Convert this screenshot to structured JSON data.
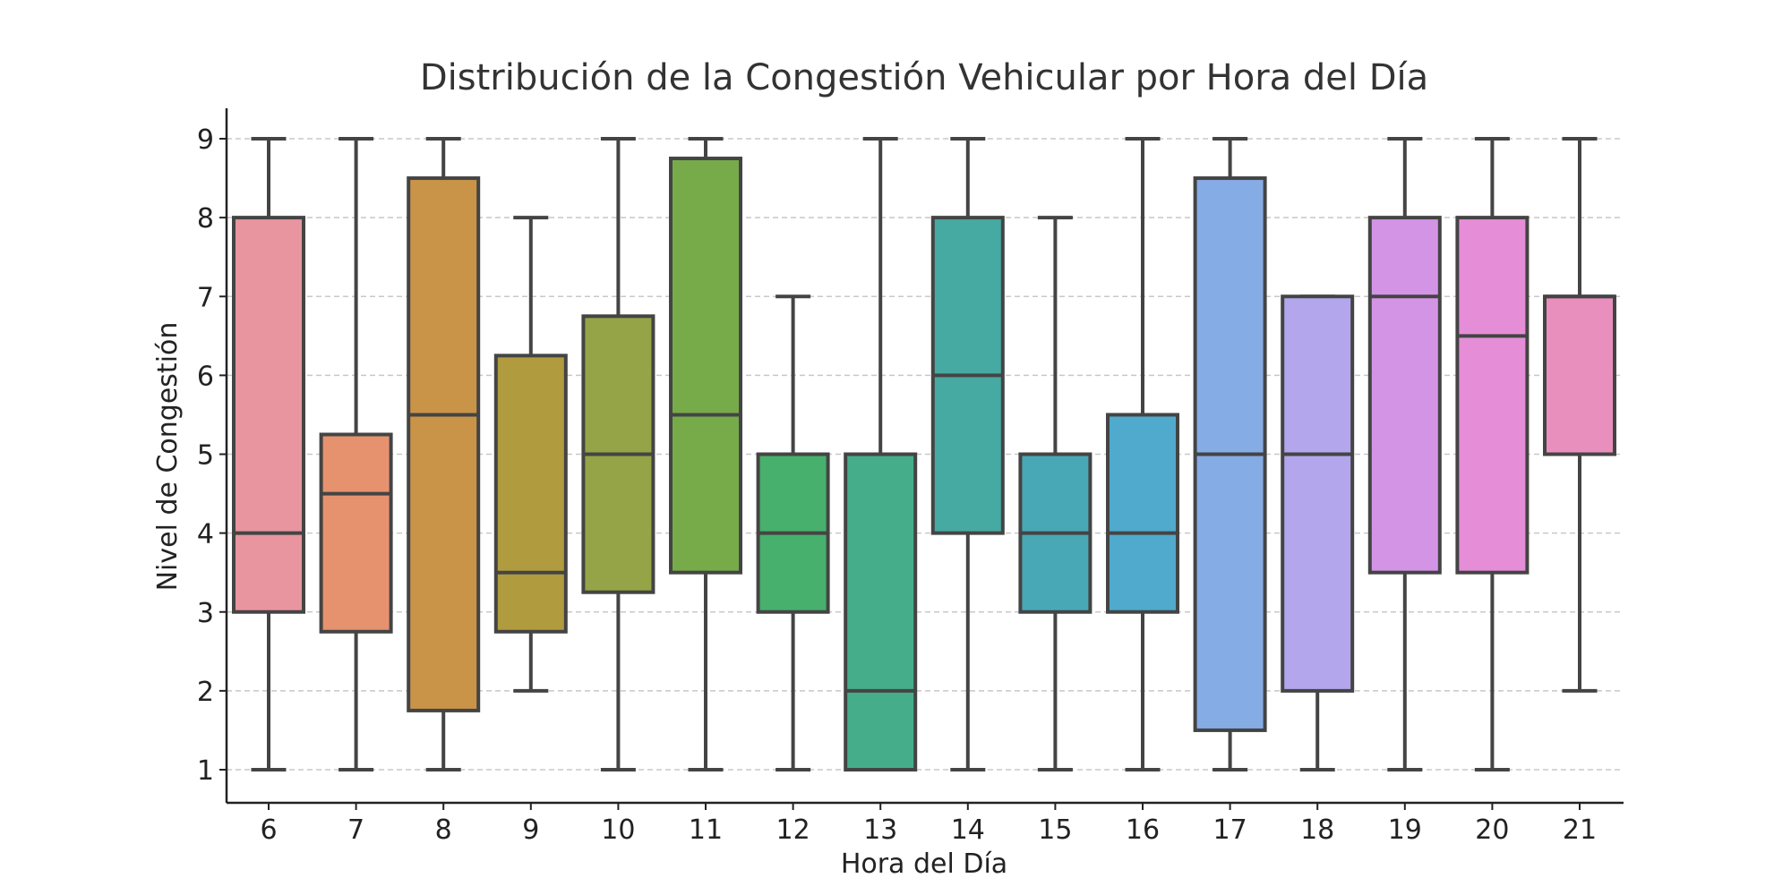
{
  "chart_data": {
    "type": "boxplot",
    "title": "Distribución de la Congestión Vehicular por Hora del Día",
    "xlabel": "Hora del Día",
    "ylabel": "Nivel de Congestión",
    "ylim": [
      0.6,
      9.4
    ],
    "yticks": [
      1,
      2,
      3,
      4,
      5,
      6,
      7,
      8,
      9
    ],
    "grid": "y-dashed",
    "categories": [
      "6",
      "7",
      "8",
      "9",
      "10",
      "11",
      "12",
      "13",
      "14",
      "15",
      "16",
      "17",
      "18",
      "19",
      "20",
      "21"
    ],
    "boxes": [
      {
        "x": "6",
        "whisker_low": 1,
        "q1": 3,
        "median": 4,
        "q3": 8,
        "whisker_high": 9,
        "color": "#E8959F"
      },
      {
        "x": "7",
        "whisker_low": 1,
        "q1": 2.75,
        "median": 4.5,
        "q3": 5.25,
        "whisker_high": 9,
        "color": "#E6926F"
      },
      {
        "x": "8",
        "whisker_low": 1,
        "q1": 1.75,
        "median": 5.5,
        "q3": 8.5,
        "whisker_high": 9,
        "color": "#C99448"
      },
      {
        "x": "9",
        "whisker_low": 2,
        "q1": 2.75,
        "median": 3.5,
        "q3": 6.25,
        "whisker_high": 8,
        "color": "#B09B3E"
      },
      {
        "x": "10",
        "whisker_low": 1,
        "q1": 3.25,
        "median": 5,
        "q3": 6.75,
        "whisker_high": 9,
        "color": "#95A446"
      },
      {
        "x": "11",
        "whisker_low": 1,
        "q1": 3.5,
        "median": 5.5,
        "q3": 8.75,
        "whisker_high": 9,
        "color": "#77AB4A"
      },
      {
        "x": "12",
        "whisker_low": 1,
        "q1": 3,
        "median": 4,
        "q3": 5,
        "whisker_high": 7,
        "color": "#47B06C"
      },
      {
        "x": "13",
        "whisker_low": 1,
        "q1": 1,
        "median": 2,
        "q3": 5,
        "whisker_high": 9,
        "color": "#45AD8A"
      },
      {
        "x": "14",
        "whisker_low": 1,
        "q1": 4,
        "median": 6,
        "q3": 8,
        "whisker_high": 9,
        "color": "#47AAA2"
      },
      {
        "x": "15",
        "whisker_low": 1,
        "q1": 3,
        "median": 4,
        "q3": 5,
        "whisker_high": 8,
        "color": "#49A8B6"
      },
      {
        "x": "16",
        "whisker_low": 1,
        "q1": 3,
        "median": 4,
        "q3": 5.5,
        "whisker_high": 9,
        "color": "#50AACD"
      },
      {
        "x": "17",
        "whisker_low": 1,
        "q1": 1.5,
        "median": 5,
        "q3": 8.5,
        "whisker_high": 9,
        "color": "#86ACE5"
      },
      {
        "x": "18",
        "whisker_low": 1,
        "q1": 2,
        "median": 5,
        "q3": 7,
        "whisker_high": 7,
        "color": "#B3A6EC"
      },
      {
        "x": "19",
        "whisker_low": 1,
        "q1": 3.5,
        "median": 7,
        "q3": 8,
        "whisker_high": 9,
        "color": "#D394E6"
      },
      {
        "x": "20",
        "whisker_low": 1,
        "q1": 3.5,
        "median": 6.5,
        "q3": 8,
        "whisker_high": 9,
        "color": "#E68DD8"
      },
      {
        "x": "21",
        "whisker_low": 2,
        "q1": 5,
        "median": 7,
        "q3": 7,
        "whisker_high": 9,
        "color": "#E88FBD"
      }
    ]
  }
}
